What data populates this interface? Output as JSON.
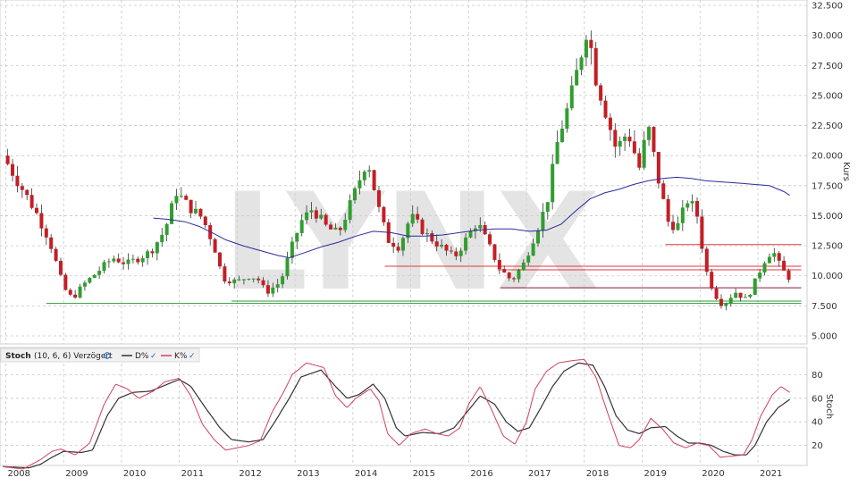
{
  "watermark": "LYNX",
  "chart_data": [
    {
      "type": "candlestick",
      "ylabel": "Kurs",
      "ylim": [
        4000,
        32500
      ],
      "y_ticks": [
        "5.000",
        "7.500",
        "10.000",
        "12.500",
        "15.000",
        "17.500",
        "20.000",
        "22.500",
        "25.000",
        "27.500",
        "30.000",
        "32.500"
      ],
      "y_tick_values": [
        5000,
        7500,
        10000,
        12500,
        15000,
        17500,
        20000,
        22500,
        25000,
        27500,
        30000,
        32500
      ],
      "x_ticks": [
        "2008",
        "2009",
        "2010",
        "2011",
        "2012",
        "2013",
        "2014",
        "2015",
        "2016",
        "2017",
        "2018",
        "2019",
        "2020",
        "2021"
      ],
      "x_tick_values": [
        2008,
        2009,
        2010,
        2011,
        2012,
        2013,
        2014,
        2015,
        2016,
        2017,
        2018,
        2019,
        2020,
        2021
      ],
      "xlim": [
        2007.9,
        2021.85
      ],
      "grid": true,
      "colors": {
        "up": "#2f9e2f",
        "down": "#c41e25",
        "sma": "#2b2b9c",
        "resistance": "#e0393e",
        "support": "#2e9d3a",
        "mid_line": "#8b1a3a"
      },
      "close_anchors": [
        [
          2007.95,
          20000
        ],
        [
          2008.25,
          17500
        ],
        [
          2008.5,
          15500
        ],
        [
          2008.75,
          13000
        ],
        [
          2009.0,
          9000
        ],
        [
          2009.15,
          8100
        ],
        [
          2009.35,
          9300
        ],
        [
          2009.6,
          10400
        ],
        [
          2009.85,
          11500
        ],
        [
          2010.1,
          11000
        ],
        [
          2010.3,
          11500
        ],
        [
          2010.5,
          12000
        ],
        [
          2010.75,
          13800
        ],
        [
          2010.95,
          17000
        ],
        [
          2011.15,
          15800
        ],
        [
          2011.4,
          14800
        ],
        [
          2011.6,
          12500
        ],
        [
          2011.75,
          9800
        ],
        [
          2012.0,
          9500
        ],
        [
          2012.2,
          10000
        ],
        [
          2012.35,
          9800
        ],
        [
          2012.5,
          8600
        ],
        [
          2012.75,
          9500
        ],
        [
          2012.9,
          11800
        ],
        [
          2013.1,
          14500
        ],
        [
          2013.3,
          15600
        ],
        [
          2013.55,
          14000
        ],
        [
          2013.75,
          13500
        ],
        [
          2014.0,
          16500
        ],
        [
          2014.25,
          19800
        ],
        [
          2014.45,
          15500
        ],
        [
          2014.6,
          13000
        ],
        [
          2014.8,
          12400
        ],
        [
          2015.0,
          15000
        ],
        [
          2015.25,
          13500
        ],
        [
          2015.5,
          12500
        ],
        [
          2015.75,
          11500
        ],
        [
          2015.95,
          13000
        ],
        [
          2016.15,
          14500
        ],
        [
          2016.35,
          12500
        ],
        [
          2016.55,
          10500
        ],
        [
          2016.75,
          9600
        ],
        [
          2016.95,
          11000
        ],
        [
          2017.15,
          13500
        ],
        [
          2017.35,
          16000
        ],
        [
          2017.55,
          21500
        ],
        [
          2017.75,
          24500
        ],
        [
          2017.9,
          27500
        ],
        [
          2018.05,
          30800
        ],
        [
          2018.2,
          26500
        ],
        [
          2018.35,
          24000
        ],
        [
          2018.55,
          20500
        ],
        [
          2018.75,
          22000
        ],
        [
          2018.95,
          19000
        ],
        [
          2019.1,
          22500
        ],
        [
          2019.3,
          17500
        ],
        [
          2019.45,
          14500
        ],
        [
          2019.6,
          14000
        ],
        [
          2019.8,
          16500
        ],
        [
          2019.95,
          15000
        ],
        [
          2020.1,
          10500
        ],
        [
          2020.25,
          8500
        ],
        [
          2020.4,
          7500
        ],
        [
          2020.6,
          8700
        ],
        [
          2020.8,
          8000
        ],
        [
          2020.95,
          9500
        ],
        [
          2021.1,
          11200
        ],
        [
          2021.25,
          12200
        ],
        [
          2021.4,
          10600
        ],
        [
          2021.55,
          9800
        ]
      ],
      "sma": [
        [
          2010.55,
          14800
        ],
        [
          2010.8,
          14700
        ],
        [
          2011.1,
          14500
        ],
        [
          2011.35,
          14100
        ],
        [
          2011.6,
          13500
        ],
        [
          2011.8,
          13000
        ],
        [
          2012.1,
          12500
        ],
        [
          2012.4,
          12100
        ],
        [
          2012.7,
          11700
        ],
        [
          2012.9,
          11500
        ],
        [
          2013.15,
          11900
        ],
        [
          2013.45,
          12400
        ],
        [
          2013.75,
          12800
        ],
        [
          2014.05,
          13300
        ],
        [
          2014.35,
          13700
        ],
        [
          2014.65,
          13600
        ],
        [
          2014.95,
          13300
        ],
        [
          2015.25,
          13300
        ],
        [
          2015.55,
          13400
        ],
        [
          2015.85,
          13600
        ],
        [
          2016.15,
          13800
        ],
        [
          2016.45,
          13900
        ],
        [
          2016.75,
          13900
        ],
        [
          2017.05,
          13700
        ],
        [
          2017.35,
          13800
        ],
        [
          2017.6,
          14300
        ],
        [
          2017.85,
          15400
        ],
        [
          2018.1,
          16400
        ],
        [
          2018.35,
          16900
        ],
        [
          2018.6,
          17200
        ],
        [
          2018.85,
          17600
        ],
        [
          2019.1,
          17900
        ],
        [
          2019.35,
          18100
        ],
        [
          2019.6,
          18200
        ],
        [
          2019.85,
          18100
        ],
        [
          2020.1,
          17900
        ],
        [
          2020.4,
          17800
        ],
        [
          2020.7,
          17700
        ],
        [
          2020.95,
          17600
        ],
        [
          2021.2,
          17500
        ],
        [
          2021.45,
          17000
        ],
        [
          2021.55,
          16700
        ]
      ],
      "levels": [
        {
          "y": 12600,
          "x0": 2019.4,
          "x1": 2021.75,
          "color": "#e0393e"
        },
        {
          "y": 10800,
          "x0": 2014.55,
          "x1": 2021.75,
          "color": "#e0393e"
        },
        {
          "y": 10500,
          "x0": 2016.5,
          "x1": 2021.75,
          "color": "#e0393e"
        },
        {
          "y": 9000,
          "x0": 2016.55,
          "x1": 2021.75,
          "color": "#8b1a3a"
        },
        {
          "y": 7900,
          "x0": 2011.9,
          "x1": 2021.75,
          "color": "#2e9d3a"
        },
        {
          "y": 7700,
          "x0": 2008.7,
          "x1": 2021.75,
          "color": "#2e9d3a"
        }
      ]
    },
    {
      "type": "line",
      "title": "Stoch",
      "params": "(10, 6, 6) Verzögert",
      "ylabel": "Stoch",
      "ylim": [
        0,
        100
      ],
      "y_ticks": [
        "20",
        "40",
        "60",
        "80"
      ],
      "y_tick_values": [
        20,
        40,
        60,
        80
      ],
      "series": [
        {
          "name": "D%",
          "color": "#333333",
          "points": [
            [
              2007.95,
              2
            ],
            [
              2008.4,
              1
            ],
            [
              2008.6,
              4
            ],
            [
              2008.8,
              10
            ],
            [
              2009.0,
              15
            ],
            [
              2009.3,
              14
            ],
            [
              2009.5,
              16
            ],
            [
              2009.75,
              45
            ],
            [
              2009.95,
              60
            ],
            [
              2010.2,
              65
            ],
            [
              2010.5,
              66
            ],
            [
              2010.8,
              72
            ],
            [
              2011.0,
              76
            ],
            [
              2011.2,
              70
            ],
            [
              2011.45,
              52
            ],
            [
              2011.7,
              35
            ],
            [
              2011.9,
              25
            ],
            [
              2012.2,
              23
            ],
            [
              2012.45,
              25
            ],
            [
              2012.65,
              40
            ],
            [
              2012.9,
              60
            ],
            [
              2013.1,
              78
            ],
            [
              2013.45,
              84
            ],
            [
              2013.7,
              70
            ],
            [
              2013.9,
              60
            ],
            [
              2014.1,
              63
            ],
            [
              2014.35,
              72
            ],
            [
              2014.55,
              60
            ],
            [
              2014.75,
              35
            ],
            [
              2014.9,
              28
            ],
            [
              2015.2,
              31
            ],
            [
              2015.5,
              30
            ],
            [
              2015.75,
              35
            ],
            [
              2015.95,
              47
            ],
            [
              2016.2,
              62
            ],
            [
              2016.45,
              55
            ],
            [
              2016.65,
              40
            ],
            [
              2016.85,
              32
            ],
            [
              2017.05,
              35
            ],
            [
              2017.25,
              52
            ],
            [
              2017.45,
              70
            ],
            [
              2017.65,
              83
            ],
            [
              2017.9,
              90
            ],
            [
              2018.15,
              88
            ],
            [
              2018.35,
              70
            ],
            [
              2018.55,
              45
            ],
            [
              2018.75,
              33
            ],
            [
              2018.95,
              30
            ],
            [
              2019.15,
              35
            ],
            [
              2019.4,
              36
            ],
            [
              2019.6,
              28
            ],
            [
              2019.8,
              22
            ],
            [
              2020.0,
              22
            ],
            [
              2020.2,
              20
            ],
            [
              2020.4,
              15
            ],
            [
              2020.6,
              12
            ],
            [
              2020.8,
              12
            ],
            [
              2020.95,
              20
            ],
            [
              2021.15,
              40
            ],
            [
              2021.35,
              52
            ],
            [
              2021.55,
              59
            ]
          ]
        },
        {
          "name": "K%",
          "color": "#d0405e",
          "points": [
            [
              2007.95,
              2
            ],
            [
              2008.3,
              0
            ],
            [
              2008.6,
              8
            ],
            [
              2008.8,
              15
            ],
            [
              2008.95,
              17
            ],
            [
              2009.2,
              12
            ],
            [
              2009.45,
              22
            ],
            [
              2009.7,
              55
            ],
            [
              2009.9,
              72
            ],
            [
              2010.1,
              68
            ],
            [
              2010.3,
              60
            ],
            [
              2010.55,
              66
            ],
            [
              2010.75,
              74
            ],
            [
              2011.0,
              77
            ],
            [
              2011.2,
              62
            ],
            [
              2011.4,
              38
            ],
            [
              2011.6,
              25
            ],
            [
              2011.8,
              16
            ],
            [
              2012.0,
              18
            ],
            [
              2012.2,
              20
            ],
            [
              2012.4,
              24
            ],
            [
              2012.6,
              48
            ],
            [
              2012.8,
              65
            ],
            [
              2012.95,
              80
            ],
            [
              2013.2,
              90
            ],
            [
              2013.5,
              86
            ],
            [
              2013.7,
              62
            ],
            [
              2013.9,
              52
            ],
            [
              2014.05,
              60
            ],
            [
              2014.3,
              68
            ],
            [
              2014.45,
              58
            ],
            [
              2014.6,
              30
            ],
            [
              2014.8,
              20
            ],
            [
              2015.0,
              30
            ],
            [
              2015.25,
              34
            ],
            [
              2015.45,
              30
            ],
            [
              2015.65,
              28
            ],
            [
              2015.85,
              35
            ],
            [
              2016.0,
              55
            ],
            [
              2016.2,
              70
            ],
            [
              2016.4,
              50
            ],
            [
              2016.6,
              28
            ],
            [
              2016.8,
              21
            ],
            [
              2017.0,
              40
            ],
            [
              2017.15,
              68
            ],
            [
              2017.35,
              83
            ],
            [
              2017.55,
              90
            ],
            [
              2017.8,
              92
            ],
            [
              2018.0,
              93
            ],
            [
              2018.2,
              78
            ],
            [
              2018.4,
              48
            ],
            [
              2018.6,
              20
            ],
            [
              2018.8,
              18
            ],
            [
              2018.95,
              25
            ],
            [
              2019.15,
              43
            ],
            [
              2019.35,
              34
            ],
            [
              2019.55,
              22
            ],
            [
              2019.75,
              18
            ],
            [
              2019.95,
              22
            ],
            [
              2020.15,
              20
            ],
            [
              2020.35,
              10
            ],
            [
              2020.55,
              11
            ],
            [
              2020.75,
              12
            ],
            [
              2020.9,
              25
            ],
            [
              2021.05,
              45
            ],
            [
              2021.25,
              63
            ],
            [
              2021.4,
              70
            ],
            [
              2021.55,
              65
            ]
          ]
        }
      ]
    }
  ]
}
